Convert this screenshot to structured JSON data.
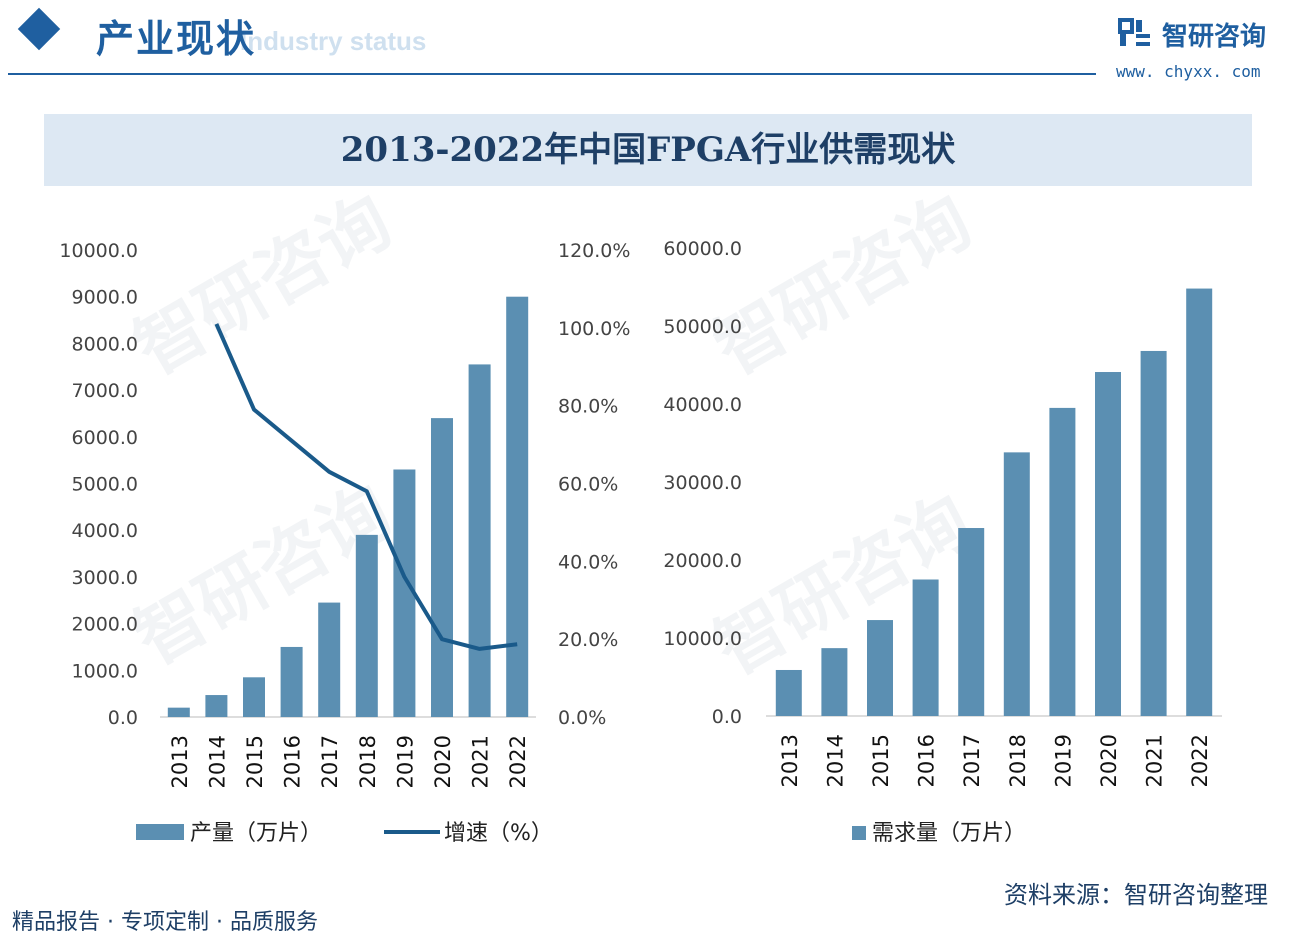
{
  "header": {
    "section_title": "产业现状",
    "section_subtitle": "Industry status",
    "brand_name": "智研咨询",
    "brand_url": "www. chyxx. com"
  },
  "title": "2013-2022年中国FPGA行业供需现状",
  "footer": {
    "left": "精品报告 · 专项定制 · 品质服务",
    "source": "资料来源：智研咨询整理"
  },
  "watermark": "智研咨询",
  "colors": {
    "bar": "#5b8fb2",
    "line": "#1a5a8a",
    "accent": "#1f5fa0"
  },
  "chart_data": [
    {
      "type": "bar+line",
      "categories": [
        "2013",
        "2014",
        "2015",
        "2016",
        "2017",
        "2018",
        "2019",
        "2020",
        "2021",
        "2022"
      ],
      "series": [
        {
          "name": "产量（万片）",
          "type": "bar",
          "axis": "left",
          "values": [
            200,
            470,
            850,
            1500,
            2450,
            3900,
            5300,
            6400,
            7550,
            9000
          ]
        },
        {
          "name": "增速（%）",
          "type": "line",
          "axis": "right",
          "values": [
            null,
            101.0,
            79.0,
            71.0,
            63.0,
            58.0,
            36.0,
            20.0,
            17.5,
            18.7
          ]
        }
      ],
      "y_left": {
        "ticks": [
          "0.0",
          "1000.0",
          "2000.0",
          "3000.0",
          "4000.0",
          "5000.0",
          "6000.0",
          "7000.0",
          "8000.0",
          "9000.0",
          "10000.0"
        ],
        "ylim": [
          0,
          10000
        ]
      },
      "y_right": {
        "ticks": [
          "0.0%",
          "20.0%",
          "40.0%",
          "60.0%",
          "80.0%",
          "100.0%",
          "120.0%"
        ],
        "ylim": [
          0,
          120
        ]
      },
      "grid": false,
      "legend": "bottom"
    },
    {
      "type": "bar",
      "categories": [
        "2013",
        "2014",
        "2015",
        "2016",
        "2017",
        "2018",
        "2019",
        "2020",
        "2021",
        "2022"
      ],
      "series": [
        {
          "name": "需求量（万片）",
          "values": [
            5900,
            8700,
            12300,
            17500,
            24100,
            33800,
            39500,
            44100,
            46800,
            54800
          ]
        }
      ],
      "y_left": {
        "ticks": [
          "0.0",
          "10000.0",
          "20000.0",
          "30000.0",
          "40000.0",
          "50000.0",
          "60000.0"
        ],
        "ylim": [
          0,
          60000
        ]
      },
      "grid": false,
      "legend": "bottom"
    }
  ]
}
